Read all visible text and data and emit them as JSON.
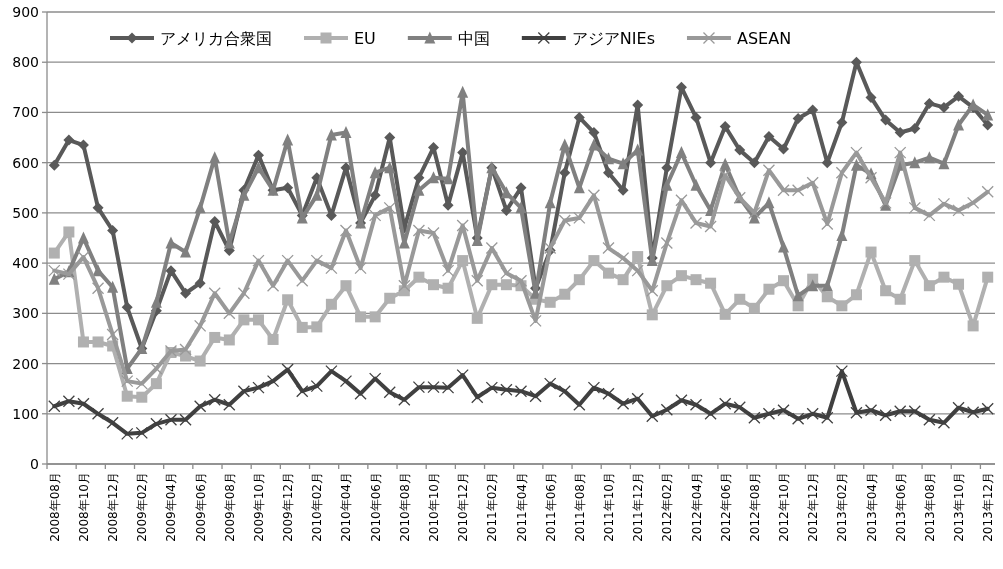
{
  "chart_data": {
    "type": "line",
    "categories": [
      "2008年08月",
      null,
      "2008年10月",
      null,
      "2008年12月",
      null,
      "2009年02月",
      null,
      "2009年04月",
      null,
      "2009年06月",
      null,
      "2009年08月",
      null,
      "2009年10月",
      null,
      "2009年12月",
      null,
      "2010年02月",
      null,
      "2010年04月",
      null,
      "2010年06月",
      null,
      "2010年08月",
      null,
      "2010年10月",
      null,
      "2010年12月",
      null,
      "2011年02月",
      null,
      "2011年04月",
      null,
      "2011年06月",
      null,
      "2011年08月",
      null,
      "2011年10月",
      null,
      "2011年12月",
      null,
      "2012年02月",
      null,
      "2012年04月",
      null,
      "2012年06月",
      null,
      "2012年08月",
      null,
      "2012年10月",
      null,
      "2012年12月",
      null,
      "2013年02月",
      null,
      "2013年04月",
      null,
      "2013年06月",
      null,
      "2013年08月",
      null,
      "2013年10月",
      null,
      "2013年12月"
    ],
    "series": [
      {
        "name": "アメリカ合衆国",
        "color": "#595959",
        "marker": "diamond",
        "values": [
          595,
          645,
          635,
          510,
          465,
          312,
          230,
          305,
          385,
          340,
          360,
          483,
          425,
          545,
          615,
          545,
          550,
          495,
          570,
          495,
          590,
          480,
          535,
          650,
          470,
          570,
          630,
          515,
          620,
          450,
          590,
          505,
          550,
          350,
          425,
          580,
          690,
          660,
          580,
          545,
          715,
          410,
          590,
          750,
          690,
          600,
          672,
          625,
          600,
          652,
          627,
          688,
          705,
          600,
          680,
          800,
          730,
          685,
          660,
          668,
          718,
          710,
          732,
          710,
          675
        ]
      },
      {
        "name": "EU",
        "color": "#b0b0b0",
        "marker": "square",
        "values": [
          420,
          462,
          243,
          243,
          235,
          135,
          133,
          160,
          222,
          215,
          205,
          252,
          247,
          287,
          287,
          248,
          327,
          272,
          273,
          318,
          355,
          293,
          293,
          330,
          345,
          372,
          357,
          350,
          405,
          290,
          357,
          357,
          355,
          328,
          322,
          338,
          367,
          405,
          380,
          367,
          413,
          297,
          355,
          375,
          367,
          360,
          298,
          328,
          310,
          348,
          365,
          315,
          368,
          333,
          315,
          337,
          422,
          345,
          328,
          405,
          355,
          372,
          358,
          275,
          372
        ]
      },
      {
        "name": "中国",
        "color": "#808080",
        "marker": "triangle",
        "values": [
          368,
          383,
          450,
          385,
          352,
          190,
          230,
          322,
          440,
          422,
          510,
          610,
          440,
          535,
          590,
          545,
          645,
          490,
          535,
          655,
          660,
          480,
          580,
          590,
          440,
          545,
          570,
          568,
          740,
          445,
          590,
          540,
          510,
          340,
          520,
          635,
          550,
          635,
          608,
          598,
          625,
          405,
          555,
          620,
          555,
          505,
          597,
          530,
          490,
          520,
          432,
          335,
          355,
          355,
          455,
          595,
          578,
          515,
          595,
          600,
          610,
          598,
          675,
          715,
          695
        ]
      },
      {
        "name": "アジアNIEs",
        "color": "#404040",
        "marker": "cross",
        "values": [
          115,
          125,
          120,
          100,
          82,
          60,
          62,
          80,
          88,
          88,
          115,
          128,
          118,
          145,
          152,
          165,
          188,
          145,
          155,
          185,
          165,
          140,
          170,
          143,
          128,
          153,
          153,
          152,
          177,
          133,
          152,
          148,
          145,
          135,
          160,
          145,
          118,
          152,
          140,
          120,
          130,
          95,
          108,
          127,
          118,
          100,
          120,
          113,
          92,
          100,
          107,
          90,
          100,
          92,
          185,
          102,
          107,
          97,
          105,
          105,
          88,
          82,
          112,
          103,
          110
        ]
      },
      {
        "name": "ASEAN",
        "color": "#999999",
        "marker": "cross",
        "values": [
          385,
          378,
          412,
          350,
          258,
          165,
          160,
          190,
          225,
          228,
          275,
          340,
          300,
          340,
          405,
          355,
          405,
          365,
          405,
          390,
          465,
          390,
          495,
          510,
          355,
          465,
          460,
          385,
          475,
          365,
          430,
          380,
          365,
          285,
          430,
          485,
          490,
          535,
          430,
          410,
          385,
          345,
          440,
          525,
          480,
          473,
          575,
          530,
          500,
          585,
          545,
          545,
          560,
          478,
          580,
          620,
          570,
          520,
          620,
          510,
          495,
          518,
          505,
          520,
          542
        ]
      }
    ],
    "ylim": [
      0,
      900
    ],
    "yticks": [
      0,
      100,
      200,
      300,
      400,
      500,
      600,
      700,
      800,
      900
    ],
    "grid": "y",
    "legend": "top",
    "line_style": "solid"
  }
}
